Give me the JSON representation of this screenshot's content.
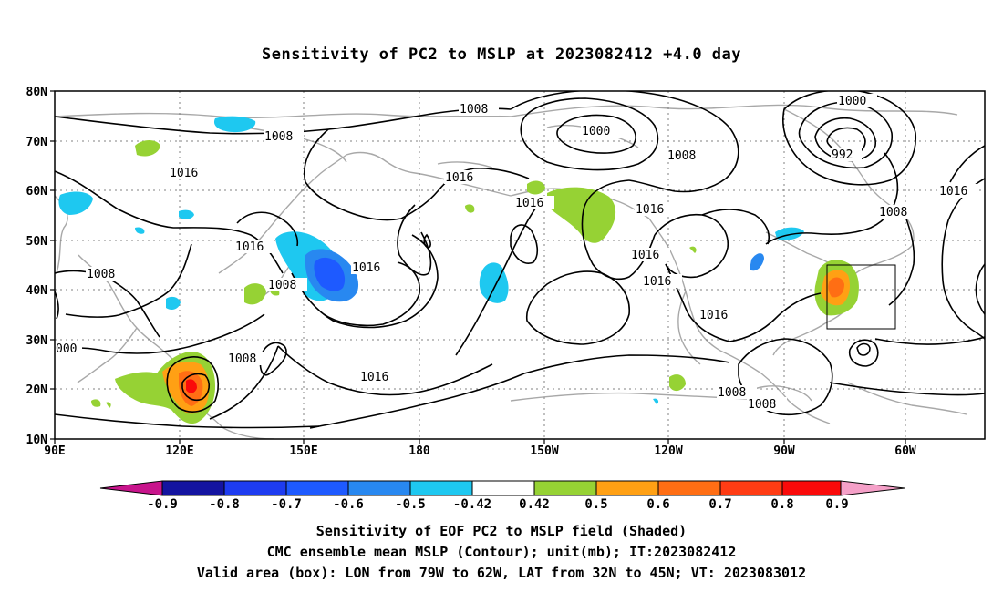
{
  "title": "Sensitivity of PC2 to MSLP at 2023082412 +4.0 day",
  "lat_labels": [
    "80N",
    "70N",
    "60N",
    "50N",
    "40N",
    "30N",
    "20N",
    "10N"
  ],
  "lon_labels": [
    "90E",
    "120E",
    "150E",
    "180",
    "150W",
    "120W",
    "90W",
    "60W"
  ],
  "contour_labels": [
    {
      "text": "1008"
    },
    {
      "text": "1008"
    },
    {
      "text": "1000"
    },
    {
      "text": "1000"
    },
    {
      "text": "992"
    },
    {
      "text": "1008"
    },
    {
      "text": "1016"
    },
    {
      "text": "1016"
    },
    {
      "text": "1016"
    },
    {
      "text": "1016"
    },
    {
      "text": "1016"
    },
    {
      "text": "1016"
    },
    {
      "text": "1016"
    },
    {
      "text": "1016"
    },
    {
      "text": "1008"
    },
    {
      "text": "1008"
    },
    {
      "text": "1016"
    },
    {
      "text": "1008"
    },
    {
      "text": "1008"
    },
    {
      "text": "1016"
    },
    {
      "text": "1008"
    },
    {
      "text": "1008"
    },
    {
      "text": "1016"
    },
    {
      "text": "1016"
    },
    {
      "text": "000"
    }
  ],
  "colorbar": {
    "labels": [
      "-0.9",
      "-0.8",
      "-0.7",
      "-0.6",
      "-0.5",
      "-0.42",
      "0.42",
      "0.5",
      "0.6",
      "0.7",
      "0.8",
      "0.9"
    ],
    "colors": [
      "#1414a0",
      "#1e3cf0",
      "#1e5aff",
      "#2888f0",
      "#1ec8f0",
      "#ffffff",
      "#96d234",
      "#ffa014",
      "#ff6e14",
      "#ff3c14",
      "#fa0a0a"
    ],
    "end_left": "#c8148c",
    "end_right": "#f5a0c8"
  },
  "shade_colors": {
    "neg_light": "#1ec8f0",
    "neg_mid": "#2888f0",
    "neg_strong": "#1e5aff",
    "pos_light": "#96d234",
    "pos_mid": "#ffa014",
    "pos_strong": "#ff6e14",
    "pos_max": "#fa0a0a"
  },
  "captions": [
    "Sensitivity of EOF PC2 to MSLP field (Shaded)",
    "CMC ensemble mean MSLP (Contour); unit(mb); IT:2023082412",
    "Valid area (box): LON from 79W to 62W, LAT from 32N to 45N; VT: 2023083012"
  ]
}
